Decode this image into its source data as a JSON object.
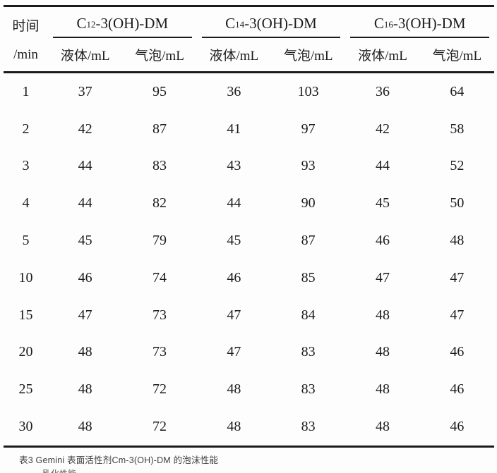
{
  "table": {
    "time_header": {
      "line1": "时间",
      "line2": "/min"
    },
    "groups": [
      {
        "prefix": "C",
        "sub": "12",
        "suffix": "-3(OH)-DM"
      },
      {
        "prefix": "C",
        "sub": "14",
        "suffix": "-3(OH)-DM"
      },
      {
        "prefix": "C",
        "sub": "16",
        "suffix": "-3(OH)-DM"
      }
    ],
    "subheaders": {
      "liquid": "液体/mL",
      "bubble": "气泡/mL"
    },
    "rows": [
      {
        "time": "1",
        "values": [
          37,
          95,
          36,
          103,
          36,
          64
        ]
      },
      {
        "time": "2",
        "values": [
          42,
          87,
          41,
          97,
          42,
          58
        ]
      },
      {
        "time": "3",
        "values": [
          44,
          83,
          43,
          93,
          44,
          52
        ]
      },
      {
        "time": "4",
        "values": [
          44,
          82,
          44,
          90,
          45,
          50
        ]
      },
      {
        "time": "5",
        "values": [
          45,
          79,
          45,
          87,
          46,
          48
        ]
      },
      {
        "time": "10",
        "values": [
          46,
          74,
          46,
          85,
          47,
          47
        ]
      },
      {
        "time": "15",
        "values": [
          47,
          73,
          47,
          84,
          48,
          47
        ]
      },
      {
        "time": "20",
        "values": [
          48,
          73,
          47,
          83,
          48,
          46
        ]
      },
      {
        "time": "25",
        "values": [
          48,
          72,
          48,
          83,
          48,
          46
        ]
      },
      {
        "time": "30",
        "values": [
          48,
          72,
          48,
          83,
          48,
          46
        ]
      }
    ]
  },
  "caption": "表3 Gemini 表面活性剂Cm-3(OH)-DM 的泡沫性能",
  "clipped_next_line": "乳化性能",
  "colors": {
    "rule": "#1b1b1b",
    "text": "#1c1c1c",
    "caption_text": "#3f3f3f"
  }
}
